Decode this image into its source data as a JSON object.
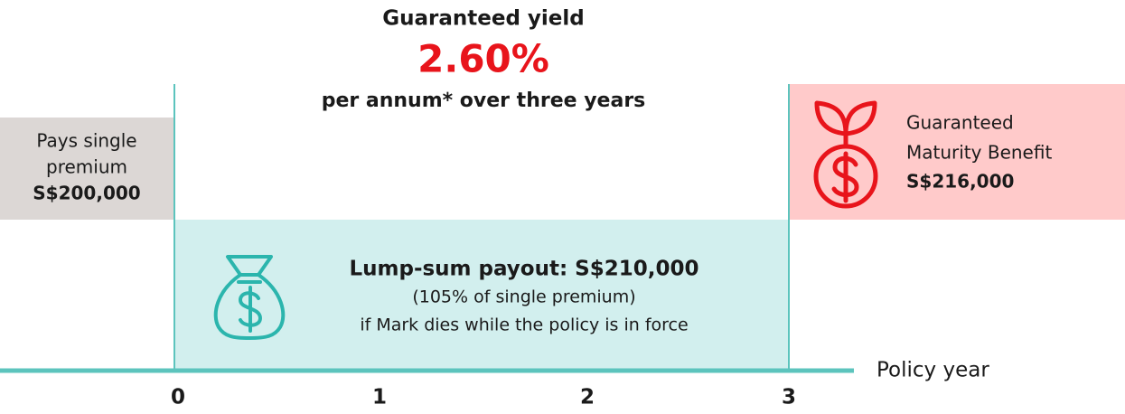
{
  "header": {
    "title": "Guaranteed yield",
    "rate": "2.60%",
    "subtitle": "per annum* over three years"
  },
  "premium": {
    "lines": [
      "Pays single",
      "premium"
    ],
    "amount": "S$200,000"
  },
  "maturity": {
    "lines": [
      "Guaranteed",
      "Maturity Benefit"
    ],
    "amount": "S$216,000"
  },
  "payout": {
    "title": "Lump-sum payout: S$210,000",
    "lines": [
      "(105% of single premium)",
      "if Mark dies while the policy is in force"
    ]
  },
  "axis": {
    "label": "Policy year",
    "ticks": [
      "0",
      "1",
      "2",
      "3"
    ]
  }
}
